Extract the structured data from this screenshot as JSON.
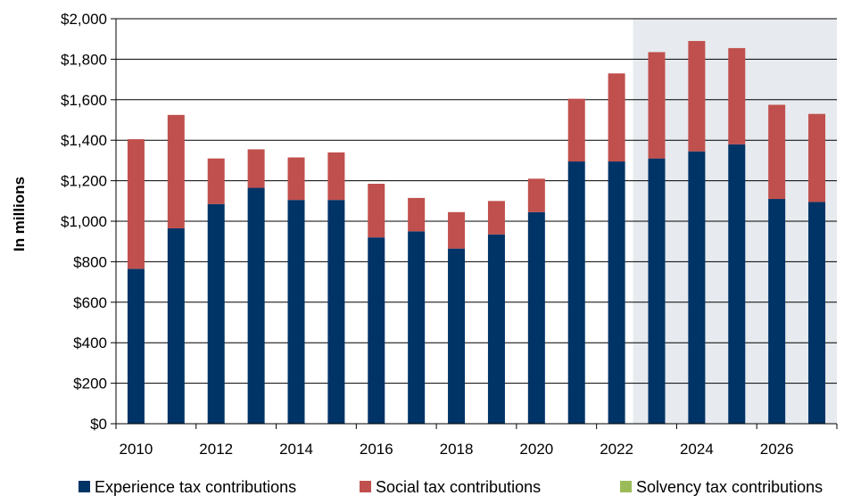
{
  "chart_data": {
    "type": "bar",
    "stacked": true,
    "ylabel": "In millions",
    "ylim": [
      0,
      2000
    ],
    "y_ticks": [
      "$0",
      "$200",
      "$400",
      "$600",
      "$800",
      "$1,000",
      "$1,200",
      "$1,400",
      "$1,600",
      "$1,800",
      "$2,000"
    ],
    "y_tick_values": [
      0,
      200,
      400,
      600,
      800,
      1000,
      1200,
      1400,
      1600,
      1800,
      2000
    ],
    "x_tick_labels": [
      "2010",
      "2012",
      "2014",
      "2016",
      "2018",
      "2020",
      "2022",
      "2024",
      "2026"
    ],
    "categories": [
      2010,
      2011,
      2012,
      2013,
      2014,
      2015,
      2016,
      2017,
      2018,
      2019,
      2020,
      2021,
      2022,
      2023,
      2024,
      2025,
      2026,
      2027
    ],
    "projection_shading_from_year": 2023,
    "grid": "horizontal",
    "legend_position": "bottom",
    "series": [
      {
        "name": "Experience tax contributions",
        "color": "#003366",
        "values": [
          765,
          965,
          1085,
          1165,
          1105,
          1105,
          920,
          950,
          865,
          935,
          1045,
          1295,
          1295,
          1310,
          1345,
          1380,
          1110,
          1095
        ]
      },
      {
        "name": "Social tax contributions",
        "color": "#c0504d",
        "values": [
          640,
          560,
          225,
          190,
          210,
          235,
          265,
          165,
          180,
          165,
          165,
          310,
          435,
          525,
          545,
          475,
          465,
          435
        ]
      },
      {
        "name": "Solvency tax contributions",
        "color": "#9bbb59",
        "values": [
          0,
          0,
          0,
          0,
          0,
          0,
          0,
          0,
          0,
          0,
          0,
          0,
          0,
          0,
          0,
          0,
          0,
          0
        ]
      }
    ]
  },
  "colors": {
    "shade": "#e7eaee",
    "grid": "#000000",
    "experience": "#003366",
    "social": "#c0504d",
    "solvency": "#9bbb59"
  }
}
